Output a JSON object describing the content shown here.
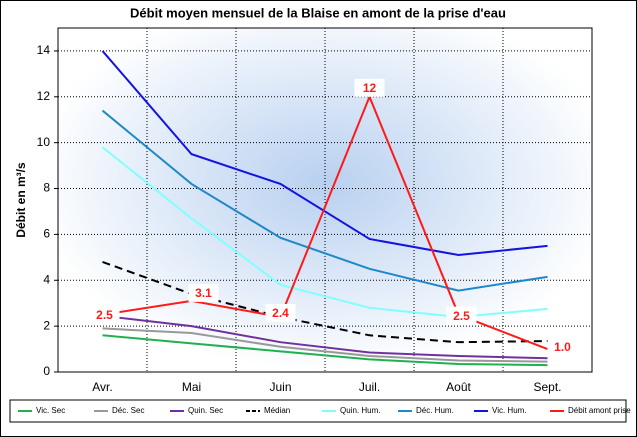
{
  "chart_data": {
    "type": "line",
    "title": "Débit moyen mensuel de la Blaise en amont de la prise d'eau",
    "y_label": "Débit en m³/s",
    "categories": [
      "Avr.",
      "Mai",
      "Juin",
      "Juil.",
      "Août",
      "Sept."
    ],
    "ylim": [
      0,
      15
    ],
    "yticks": [
      0,
      2,
      4,
      6,
      8,
      10,
      12,
      14
    ],
    "grid": true,
    "series": [
      {
        "name": "Vic. Sec",
        "color": "#20b050",
        "values": [
          1.6,
          1.25,
          0.9,
          0.55,
          0.35,
          0.3
        ]
      },
      {
        "name": "Déc. Sec",
        "color": "#999999",
        "values": [
          1.9,
          1.7,
          1.1,
          0.7,
          0.5,
          0.45
        ]
      },
      {
        "name": "Quin. Sec",
        "color": "#7030a0",
        "values": [
          2.45,
          2.0,
          1.3,
          0.85,
          0.7,
          0.6
        ]
      },
      {
        "name": "Médian",
        "color": "#000000",
        "dashed": true,
        "values": [
          4.8,
          3.4,
          2.4,
          1.6,
          1.3,
          1.35
        ]
      },
      {
        "name": "Quin. Hum.",
        "color": "#80ffff",
        "values": [
          9.8,
          6.7,
          3.8,
          2.8,
          2.4,
          2.75
        ]
      },
      {
        "name": "Déc. Hum.",
        "color": "#1e88c8",
        "values": [
          11.4,
          8.2,
          5.85,
          4.5,
          3.55,
          4.15
        ]
      },
      {
        "name": "Vic. Hum.",
        "color": "#1414e0",
        "values": [
          14.0,
          9.5,
          8.2,
          5.8,
          5.1,
          5.5
        ]
      },
      {
        "name": "Débit amont prise",
        "color": "#ff1a1a",
        "values": [
          2.5,
          3.1,
          2.4,
          12,
          2.5,
          1.0
        ],
        "value_labels": [
          "2.5",
          "3.1",
          "2.4",
          "12",
          "2.5",
          "1.0"
        ]
      }
    ]
  }
}
